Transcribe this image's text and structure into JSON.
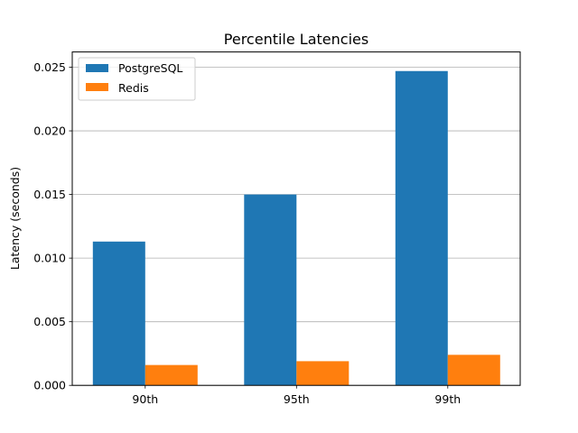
{
  "chart_data": {
    "type": "bar",
    "title": "Percentile Latencies",
    "xlabel": "",
    "ylabel": "Latency (seconds)",
    "categories": [
      "90th",
      "95th",
      "99th"
    ],
    "series": [
      {
        "name": "PostgreSQL",
        "color": "#1f77b4",
        "values": [
          0.0113,
          0.015,
          0.0247
        ]
      },
      {
        "name": "Redis",
        "color": "#ff7f0e",
        "values": [
          0.0016,
          0.0019,
          0.0024
        ]
      }
    ],
    "ylim": [
      0,
      0.0262
    ],
    "yticks": [
      "0.000",
      "0.005",
      "0.010",
      "0.015",
      "0.020",
      "0.025"
    ],
    "grid": {
      "y": true,
      "x": false,
      "color": "#b0b0b0"
    },
    "legend": "top-left"
  }
}
